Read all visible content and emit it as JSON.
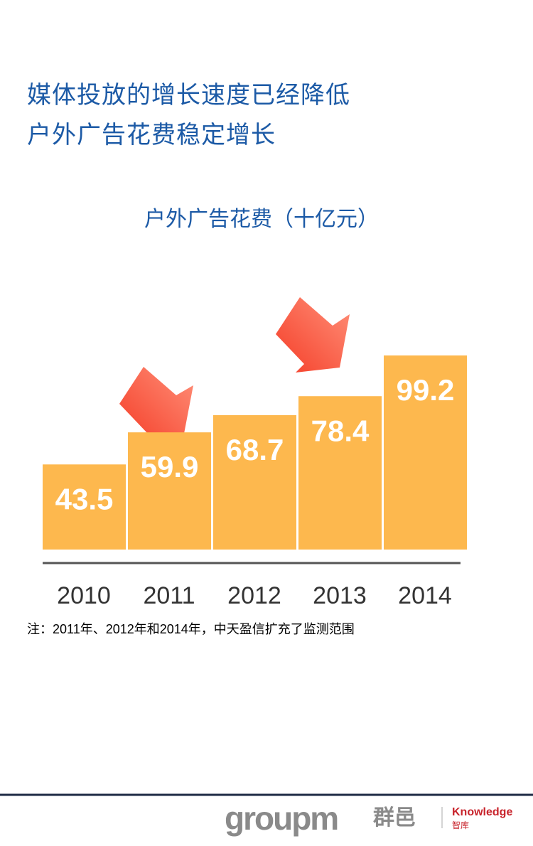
{
  "headline": [
    "媒体投放的增长速度已经降低",
    "户外广告花费稳定增长"
  ],
  "chart_data": {
    "type": "bar",
    "title": "户外广告花费（十亿元）",
    "categories": [
      "2010",
      "2011",
      "2012",
      "2013",
      "2014"
    ],
    "values": [
      43.5,
      59.9,
      68.7,
      78.4,
      99.2
    ],
    "color": "#fdb84e"
  },
  "note": "注：2011年、2012年和2014年，中天盈信扩充了监测范围",
  "footer": {
    "brand": "groupm",
    "brand_cn": "群邑",
    "knowledge": "Knowledge",
    "knowledge_cn": "智库"
  }
}
